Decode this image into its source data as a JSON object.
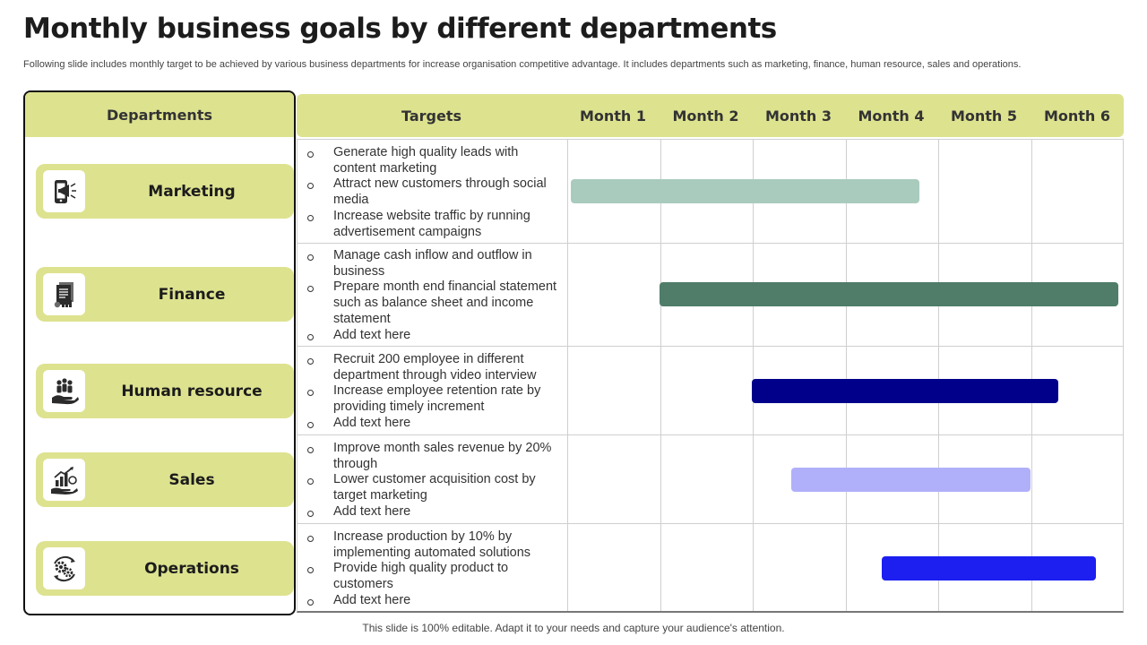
{
  "title": "Monthly business goals by different departments",
  "subtitle": "Following slide includes monthly target to be achieved by various business departments for increase organisation competitive advantage. It includes departments such as marketing, finance, human resource, sales and operations.",
  "headers": {
    "departments": "Departments",
    "targets": "Targets",
    "months": [
      "Month 1",
      "Month 2",
      "Month 3",
      "Month 4",
      "Month 5",
      "Month 6"
    ]
  },
  "rows": [
    {
      "department": "Marketing",
      "icon": "megaphone-phone-icon",
      "targets": [
        "Generate high quality leads with content marketing",
        "Attract new customers through social media",
        "Increase website traffic by running advertisement campaigns"
      ],
      "timeline": {
        "start_month": 1.05,
        "end_month": 4.8
      },
      "bar_color": "#a9cbbd"
    },
    {
      "department": "Finance",
      "icon": "financial-document-icon",
      "targets": [
        "Manage cash inflow and outflow in business",
        "Prepare month end financial statement such as balance sheet and income statement",
        "Add text here"
      ],
      "timeline": {
        "start_month": 2.0,
        "end_month": 6.95
      },
      "bar_color": "#4f7d69"
    },
    {
      "department": "Human resource",
      "icon": "people-hand-icon",
      "targets": [
        "Recruit 200 employee in different department through video interview",
        "Increase employee retention rate by providing timely increment",
        "Add text here"
      ],
      "timeline": {
        "start_month": 3.0,
        "end_month": 6.3
      },
      "bar_color": "#00008b"
    },
    {
      "department": "Sales",
      "icon": "growth-chart-hand-icon",
      "targets": [
        "Improve month sales revenue by 20% through",
        "Lower customer acquisition cost by target marketing",
        "Add text here"
      ],
      "timeline": {
        "start_month": 3.42,
        "end_month": 6.0
      },
      "bar_color": "#b0b0fa"
    },
    {
      "department": "Operations",
      "icon": "gears-cycle-icon",
      "targets": [
        "Increase production by 10% by implementing automated solutions",
        "Provide high quality product to customers",
        "Add text here"
      ],
      "timeline": {
        "start_month": 4.4,
        "end_month": 6.7
      },
      "bar_color": "#1c1ff0"
    }
  ],
  "footer": "This slide is 100% editable. Adapt it to your needs and capture your audience's attention.",
  "colors": {
    "accent": "#dde28f",
    "grid": "#cfcfcf",
    "border": "#111111"
  }
}
